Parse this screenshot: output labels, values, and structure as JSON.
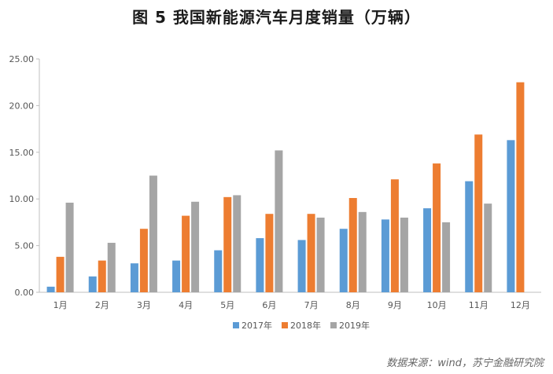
{
  "chart_data": {
    "type": "bar",
    "title": "图 5   我国新能源汽车月度销量（万辆）",
    "categories": [
      "1月",
      "2月",
      "3月",
      "4月",
      "5月",
      "6月",
      "7月",
      "8月",
      "9月",
      "10月",
      "11月",
      "12月"
    ],
    "series": [
      {
        "name": "2017年",
        "color": "#5b9bd5",
        "values": [
          0.6,
          1.7,
          3.1,
          3.4,
          4.5,
          5.8,
          5.6,
          6.8,
          7.8,
          9.0,
          11.9,
          16.3
        ]
      },
      {
        "name": "2018年",
        "color": "#ed7d31",
        "values": [
          3.8,
          3.4,
          6.8,
          8.2,
          10.2,
          8.4,
          8.4,
          10.1,
          12.1,
          13.8,
          16.9,
          22.5
        ]
      },
      {
        "name": "2019年",
        "color": "#a5a5a5",
        "values": [
          9.6,
          5.3,
          12.5,
          9.7,
          10.4,
          15.2,
          8.0,
          8.6,
          8.0,
          7.5,
          9.5,
          null
        ]
      }
    ],
    "y_ticks": [
      "0.00",
      "5.00",
      "10.00",
      "15.00",
      "20.00",
      "25.00"
    ],
    "ylim": [
      0,
      25
    ],
    "grid": false,
    "legend_position": "bottom"
  },
  "source_note": "数据来源：wind，苏宁金融研究院"
}
